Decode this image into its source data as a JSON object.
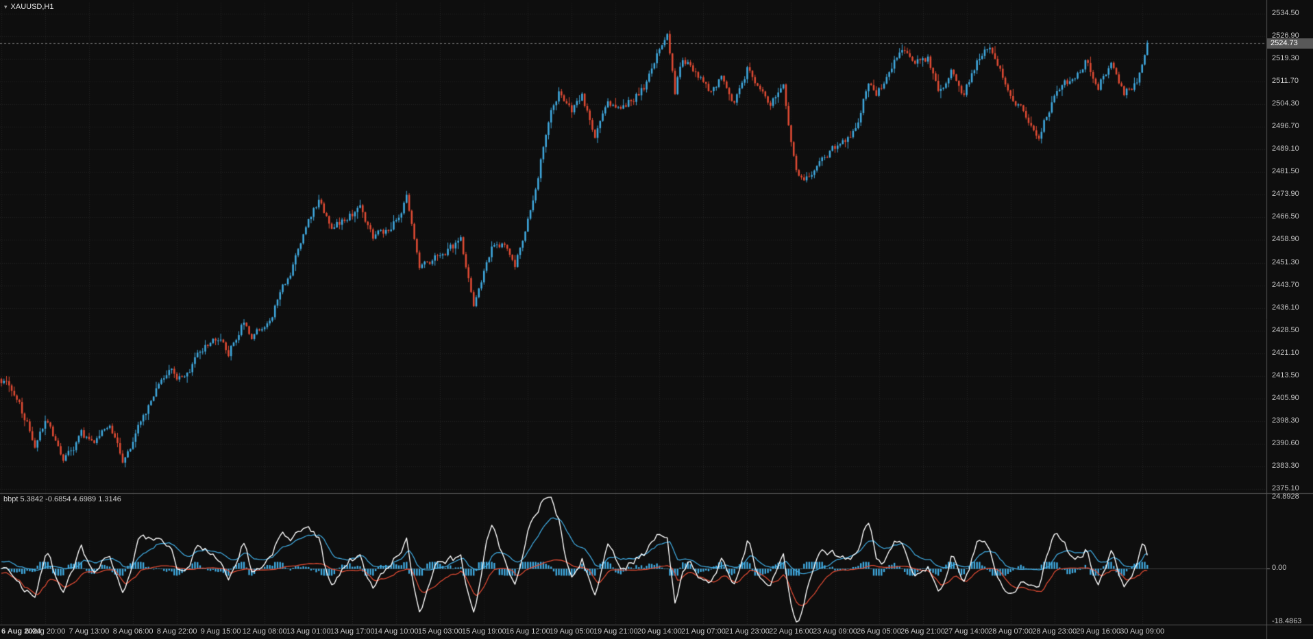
{
  "app": {
    "symbol_label": "XAUUSD,H1"
  },
  "chart_data": {
    "type": "candlestick",
    "title": "XAUUSD,H1",
    "symbol": "XAUUSD",
    "timeframe": "H1",
    "current_price": "2524.73",
    "colors": {
      "background": "#0e0e0e",
      "bull": "#3fa7dc",
      "bear": "#dd4a33",
      "grid": "#232323",
      "axis_text": "#c6c6c6",
      "separator": "#555555",
      "zero_line": "#3c3c3c",
      "bid_line": "#6b6b6b",
      "price_badge_bg": "#585858",
      "indicator_blue": "#3fa7dc",
      "indicator_red": "#dd4a33",
      "indicator_white": "#ffffff",
      "histogram": "#3fa7dc"
    },
    "price_axis": {
      "top_value": 2534.5,
      "bottom_value": 2375.1,
      "labels": [
        "2534.50",
        "2526.90",
        "2519.30",
        "2511.70",
        "2504.30",
        "2496.70",
        "2489.10",
        "2481.50",
        "2473.90",
        "2466.50",
        "2458.90",
        "2451.30",
        "2443.70",
        "2436.10",
        "2428.50",
        "2421.10",
        "2413.50",
        "2405.90",
        "2398.30",
        "2390.60",
        "2383.30",
        "2375.10"
      ]
    },
    "time_axis": {
      "candles_per_label": 17,
      "labels": [
        "6 Aug 2024",
        "6 Aug 20:00",
        "7 Aug 13:00",
        "8 Aug 06:00",
        "8 Aug 22:00",
        "9 Aug 15:00",
        "12 Aug 08:00",
        "13 Aug 01:00",
        "13 Aug 17:00",
        "14 Aug 10:00",
        "15 Aug 03:00",
        "15 Aug 19:00",
        "16 Aug 12:00",
        "19 Aug 05:00",
        "19 Aug 21:00",
        "20 Aug 14:00",
        "21 Aug 07:00",
        "21 Aug 23:00",
        "22 Aug 16:00",
        "23 Aug 09:00",
        "26 Aug 05:00",
        "26 Aug 21:00",
        "27 Aug 14:00",
        "28 Aug 07:00",
        "28 Aug 23:00",
        "29 Aug 16:00",
        "30 Aug 09:00"
      ]
    },
    "candles": {
      "count": 445,
      "seed": 73,
      "noise": 1.35,
      "wick": 2.4,
      "waypoints": [
        [
          0,
          2412
        ],
        [
          6,
          2405
        ],
        [
          13,
          2391
        ],
        [
          18,
          2398
        ],
        [
          24,
          2384
        ],
        [
          31,
          2393
        ],
        [
          36,
          2390
        ],
        [
          42,
          2398
        ],
        [
          47,
          2385
        ],
        [
          54,
          2397
        ],
        [
          60,
          2408
        ],
        [
          65,
          2415
        ],
        [
          71,
          2411
        ],
        [
          76,
          2421
        ],
        [
          83,
          2426
        ],
        [
          88,
          2421
        ],
        [
          94,
          2431
        ],
        [
          97,
          2427
        ],
        [
          105,
          2434
        ],
        [
          112,
          2448
        ],
        [
          118,
          2462
        ],
        [
          123,
          2472
        ],
        [
          128,
          2461
        ],
        [
          133,
          2466
        ],
        [
          139,
          2469
        ],
        [
          144,
          2459
        ],
        [
          151,
          2462
        ],
        [
          157,
          2473
        ],
        [
          162,
          2448
        ],
        [
          167,
          2452
        ],
        [
          172,
          2455
        ],
        [
          178,
          2458
        ],
        [
          183,
          2437
        ],
        [
          190,
          2455
        ],
        [
          195,
          2458
        ],
        [
          199,
          2451
        ],
        [
          204,
          2465
        ],
        [
          208,
          2480
        ],
        [
          212,
          2500
        ],
        [
          216,
          2509
        ],
        [
          221,
          2501
        ],
        [
          225,
          2507
        ],
        [
          230,
          2494
        ],
        [
          235,
          2504
        ],
        [
          240,
          2502
        ],
        [
          245,
          2506
        ],
        [
          250,
          2511
        ],
        [
          255,
          2524
        ],
        [
          258,
          2530
        ],
        [
          261,
          2509
        ],
        [
          264,
          2520
        ],
        [
          269,
          2514
        ],
        [
          274,
          2509
        ],
        [
          279,
          2513
        ],
        [
          284,
          2504
        ],
        [
          289,
          2516
        ],
        [
          294,
          2509
        ],
        [
          298,
          2504
        ],
        [
          303,
          2511
        ],
        [
          308,
          2481
        ],
        [
          311,
          2477
        ],
        [
          316,
          2484
        ],
        [
          321,
          2488
        ],
        [
          326,
          2492
        ],
        [
          331,
          2496
        ],
        [
          336,
          2512
        ],
        [
          339,
          2507
        ],
        [
          344,
          2515
        ],
        [
          349,
          2524
        ],
        [
          354,
          2517
        ],
        [
          359,
          2520
        ],
        [
          363,
          2509
        ],
        [
          368,
          2515
        ],
        [
          373,
          2507
        ],
        [
          378,
          2519
        ],
        [
          383,
          2524
        ],
        [
          388,
          2514
        ],
        [
          392,
          2505
        ],
        [
          397,
          2500
        ],
        [
          402,
          2494
        ],
        [
          407,
          2505
        ],
        [
          412,
          2510
        ],
        [
          417,
          2515
        ],
        [
          420,
          2519
        ],
        [
          425,
          2511
        ],
        [
          430,
          2518
        ],
        [
          435,
          2507
        ],
        [
          440,
          2512
        ],
        [
          444,
          2524.73
        ]
      ]
    },
    "indicator": {
      "name": "bbpt",
      "label": "bbpt 5.3842 -0.6854 4.6989 1.3146",
      "values": [
        "5.3842",
        "-0.6854",
        "4.6989",
        "1.3146"
      ],
      "axis_max": 24.8928,
      "axis_min": -18.4863,
      "axis_labels": [
        "24.8928",
        "0.00",
        "-18.4863"
      ],
      "last": {
        "blue": 5.3842,
        "red": -0.6854,
        "white": 4.6989,
        "hist": 1.3146
      }
    }
  }
}
